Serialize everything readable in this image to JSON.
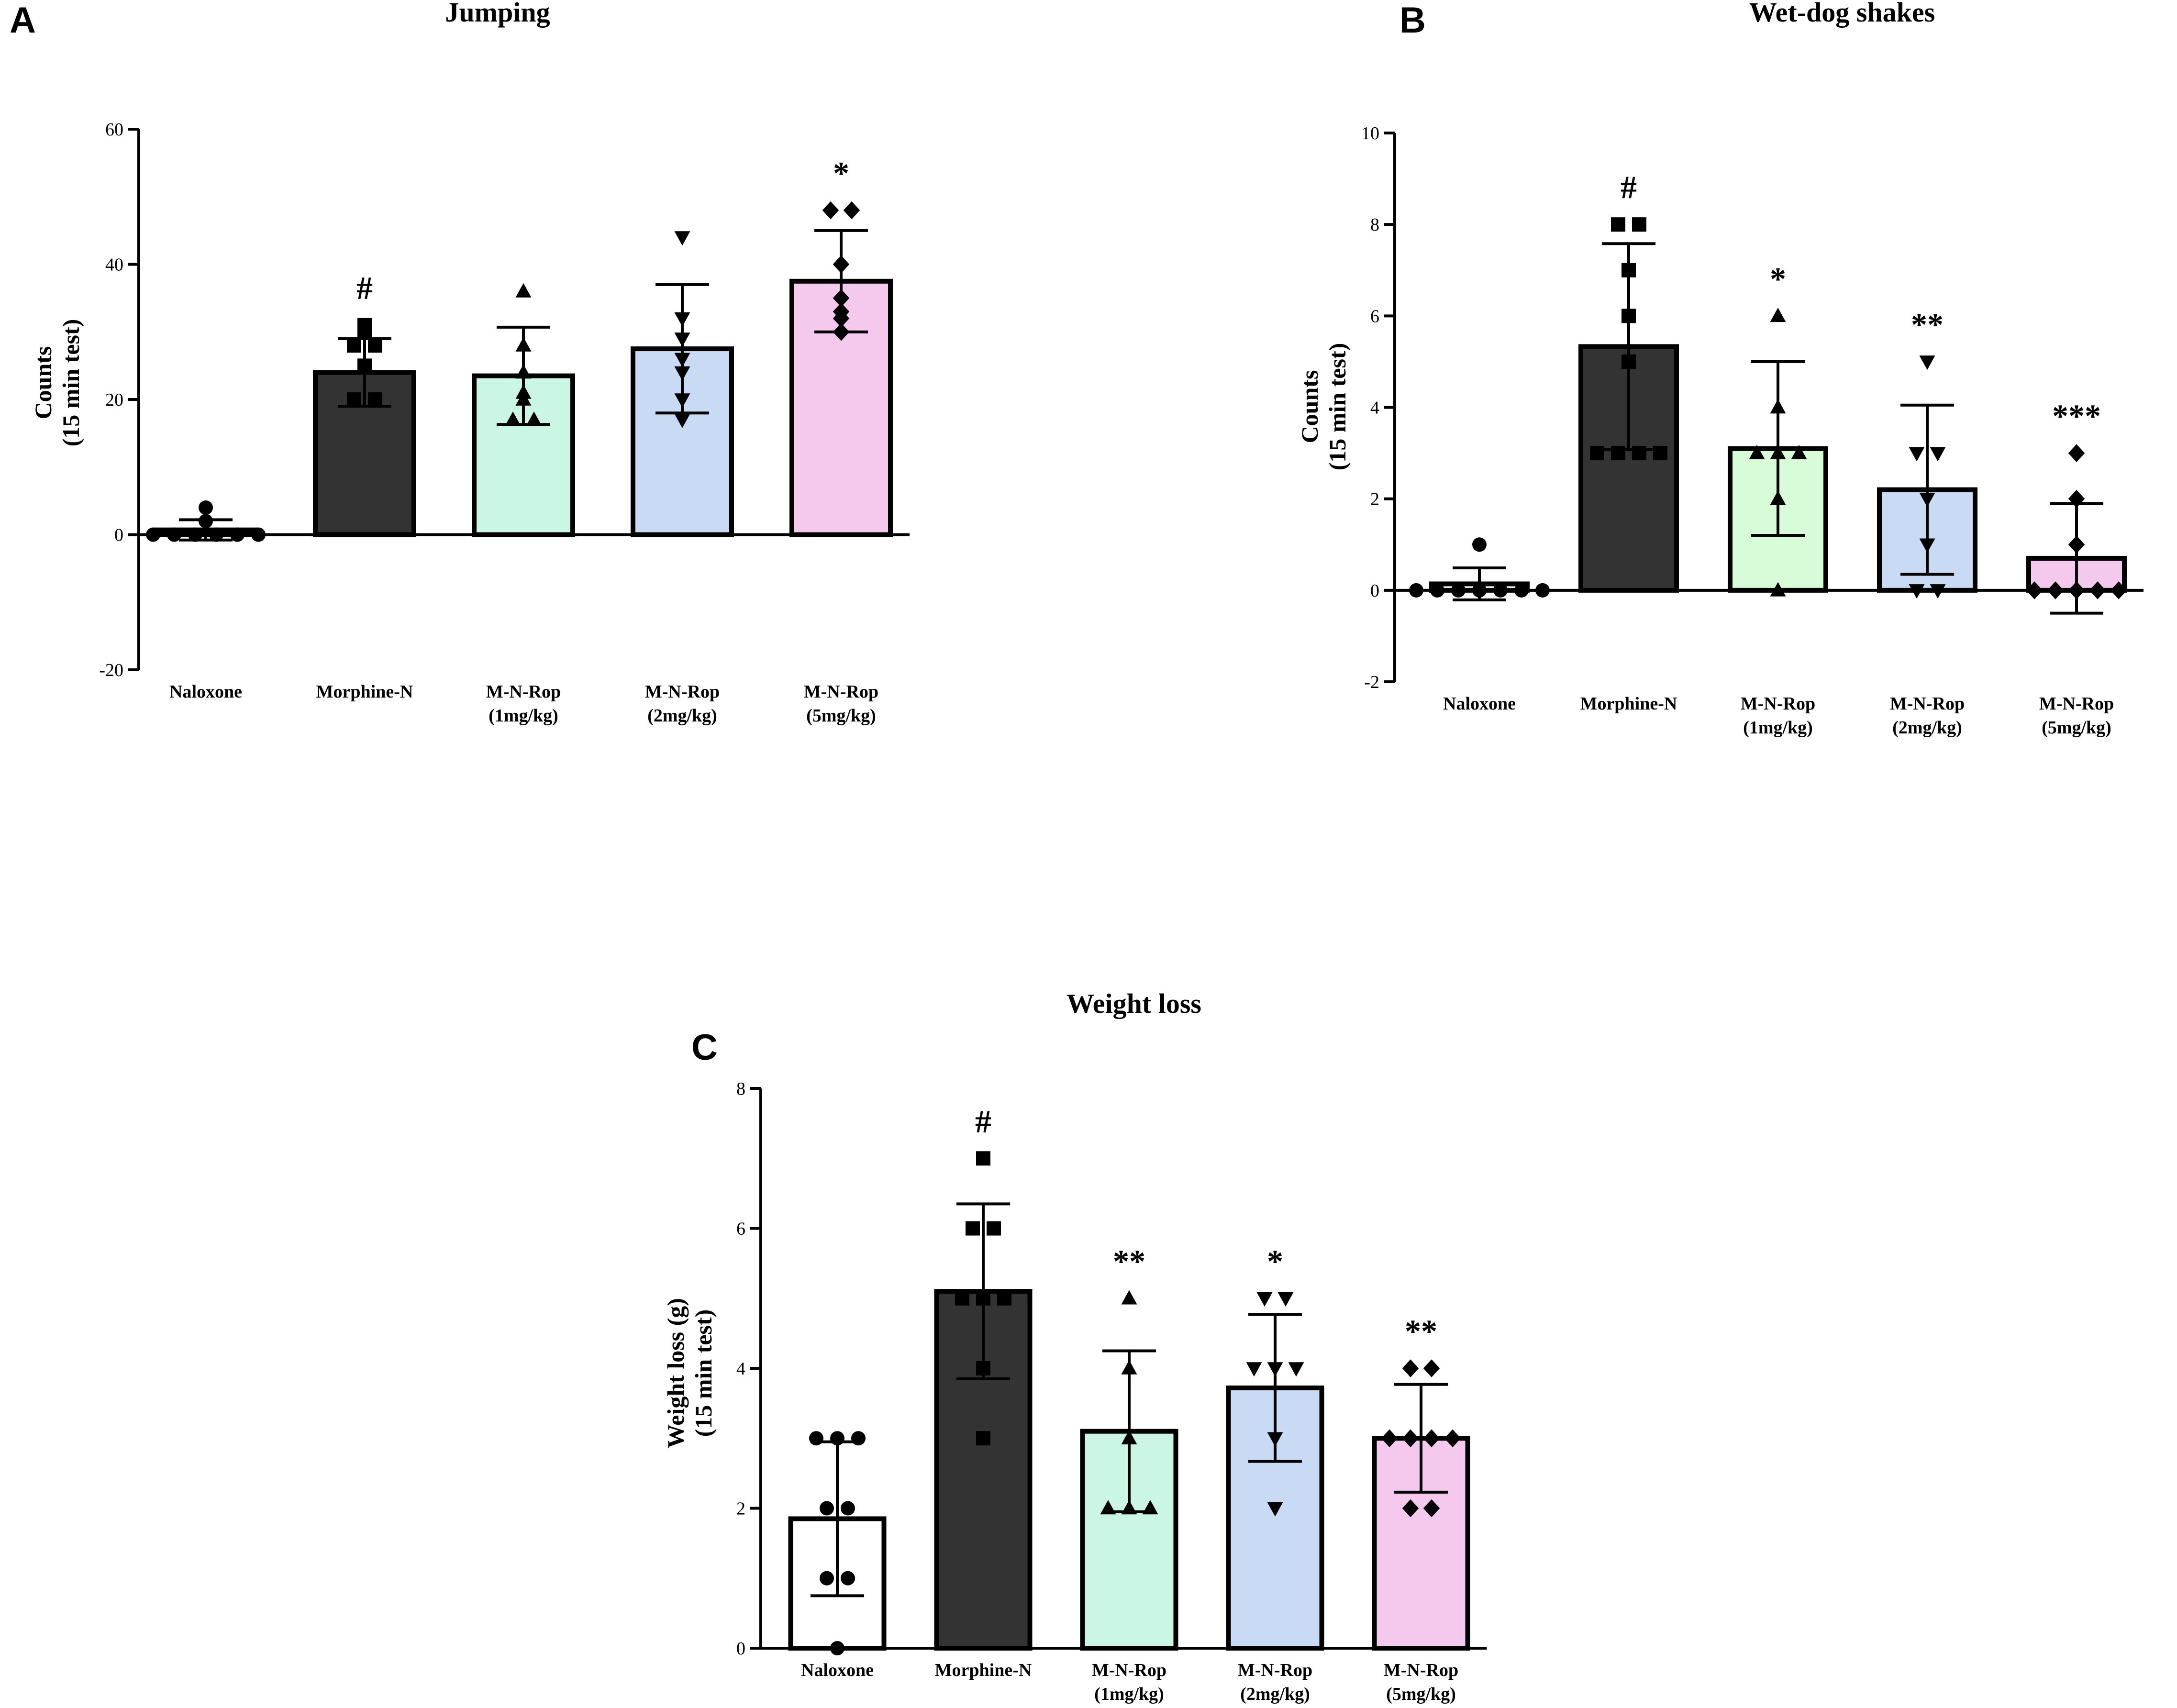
{
  "colors": {
    "axis": "#000000",
    "bars": [
      "#ffffff",
      "#333333",
      "#ccf6e4",
      "#c9daf5",
      "#f5c9ee"
    ],
    "bars_panel_b": [
      "#ffffff",
      "#333333",
      "#d8fcd8",
      "#c9daf5",
      "#f5c9ee"
    ]
  },
  "chart_data": [
    {
      "panel": "A",
      "type": "bar",
      "title": "Jumping",
      "ylabel_lines": [
        "Counts",
        "(15 min test)"
      ],
      "ylim": [
        -20,
        60
      ],
      "yticks": [
        -20,
        0,
        20,
        40,
        60
      ],
      "categories": [
        [
          "Naloxone"
        ],
        [
          "Morphine-N"
        ],
        [
          "M-N-Rop",
          "(1mg/kg)"
        ],
        [
          "M-N-Rop",
          "(2mg/kg)"
        ],
        [
          "M-N-Rop",
          "(5mg/kg)"
        ]
      ],
      "markers": [
        "circle",
        "square",
        "triangle-up",
        "triangle-down",
        "diamond"
      ],
      "values": [
        0.7,
        24,
        23.5,
        27.5,
        37.5
      ],
      "sd": [
        1.5,
        5,
        7.2,
        9.5,
        7.5
      ],
      "significance": [
        "",
        "#",
        "",
        "",
        "*"
      ],
      "points": [
        [
          0,
          0,
          0,
          0,
          0,
          0,
          4,
          2
        ],
        [
          20,
          20,
          25,
          28,
          30,
          31,
          28
        ],
        [
          17,
          17,
          20,
          21,
          24,
          28,
          36
        ],
        [
          17,
          20,
          24,
          26,
          29,
          32,
          44
        ],
        [
          30,
          32,
          33,
          35,
          40,
          48,
          48
        ]
      ]
    },
    {
      "panel": "B",
      "type": "bar",
      "title": "Wet-dog shakes",
      "ylabel_lines": [
        "Counts",
        "(15 min test)"
      ],
      "ylim": [
        -2,
        10
      ],
      "yticks": [
        -2,
        0,
        2,
        4,
        6,
        8,
        10
      ],
      "categories": [
        [
          "Naloxone"
        ],
        [
          "Morphine-N"
        ],
        [
          "M-N-Rop",
          "(1mg/kg)"
        ],
        [
          "M-N-Rop",
          "(2mg/kg)"
        ],
        [
          "M-N-Rop",
          "(5mg/kg)"
        ]
      ],
      "markers": [
        "circle",
        "square",
        "triangle-up",
        "triangle-down",
        "diamond"
      ],
      "values": [
        0.14,
        5.33,
        3.1,
        2.2,
        0.7
      ],
      "sd": [
        0.35,
        2.25,
        1.9,
        1.85,
        1.2
      ],
      "significance": [
        "",
        "#",
        "*",
        "**",
        "***"
      ],
      "points": [
        [
          0,
          0,
          0,
          0,
          0,
          0,
          0,
          1
        ],
        [
          3,
          3,
          3,
          3,
          5,
          6,
          7,
          8,
          8
        ],
        [
          0,
          2,
          3,
          3,
          3,
          4,
          6
        ],
        [
          0,
          0,
          1,
          2,
          3,
          3,
          5
        ],
        [
          0,
          0,
          0,
          0,
          0,
          1,
          2,
          3
        ]
      ]
    },
    {
      "panel": "C",
      "type": "bar",
      "title": "Weight loss",
      "ylabel_lines": [
        "Weight loss (g)",
        "(15 min test)"
      ],
      "ylim": [
        0,
        8
      ],
      "yticks": [
        0,
        2,
        4,
        6,
        8
      ],
      "categories": [
        [
          "Naloxone"
        ],
        [
          "Morphine-N"
        ],
        [
          "M-N-Rop",
          "(1mg/kg)"
        ],
        [
          "M-N-Rop",
          "(2mg/kg)"
        ],
        [
          "M-N-Rop",
          "(5mg/kg)"
        ]
      ],
      "markers": [
        "circle",
        "square",
        "triangle-up",
        "triangle-down",
        "diamond"
      ],
      "values": [
        1.85,
        5.1,
        3.1,
        3.72,
        3.0
      ],
      "sd": [
        1.1,
        1.25,
        1.15,
        1.05,
        0.77
      ],
      "significance": [
        "",
        "#",
        "**",
        "*",
        "**"
      ],
      "points": [
        [
          0,
          1,
          1,
          2,
          2,
          3,
          3,
          3
        ],
        [
          3,
          4,
          5,
          5,
          5,
          6,
          6,
          7
        ],
        [
          2,
          2,
          2,
          3,
          4,
          5
        ],
        [
          2,
          3,
          4,
          4,
          4,
          5,
          5
        ],
        [
          2,
          2,
          3,
          3,
          3,
          3,
          4,
          4
        ]
      ]
    }
  ]
}
